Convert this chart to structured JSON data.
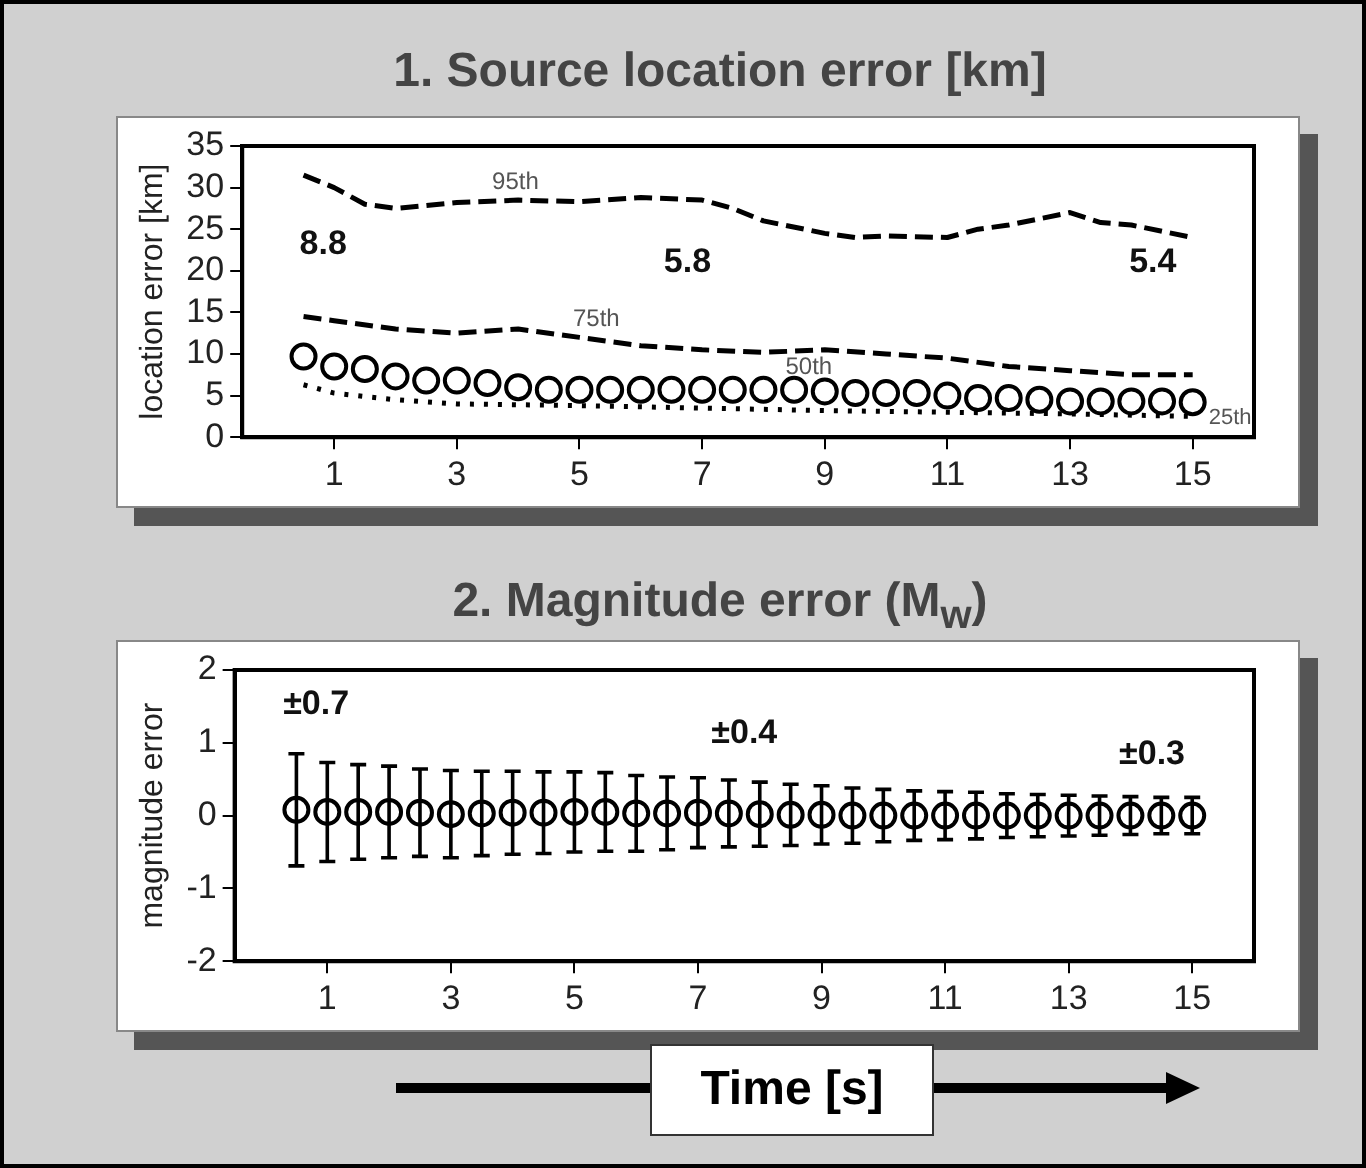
{
  "chart_data": [
    {
      "type": "line",
      "title": "1. Source location error [km]",
      "ylabel": "location error [km]",
      "xlim": [
        -0.5,
        16
      ],
      "xticks": [
        1,
        3,
        5,
        7,
        9,
        11,
        13,
        15
      ],
      "ylim": [
        0,
        35
      ],
      "yticks": [
        0,
        5,
        10,
        15,
        20,
        25,
        30,
        35
      ],
      "grid": false,
      "legend": false,
      "series": [
        {
          "type": "line",
          "name": "95th",
          "line_style": "dashed",
          "marker": "none",
          "color": "#000000",
          "x": [
            0.5,
            1,
            1.5,
            2,
            3,
            4,
            5,
            6,
            7,
            7.5,
            8,
            9,
            9.5,
            10,
            11,
            11.5,
            12,
            13,
            13.5,
            14,
            15
          ],
          "values": [
            31.5,
            30,
            28,
            27.5,
            28.2,
            28.5,
            28.3,
            28.8,
            28.5,
            27.5,
            26,
            24.5,
            24,
            24.2,
            24,
            25,
            25.5,
            27,
            25.8,
            25.5,
            24
          ]
        },
        {
          "type": "line",
          "name": "75th",
          "line_style": "dashed",
          "marker": "none",
          "color": "#000000",
          "x": [
            0.5,
            1,
            2,
            3,
            4,
            5,
            6,
            7,
            8,
            9,
            10,
            11,
            12,
            13,
            14,
            15
          ],
          "values": [
            14.5,
            14,
            13,
            12.5,
            13,
            12,
            11,
            10.5,
            10.2,
            10.5,
            10,
            9.5,
            8.5,
            8,
            7.5,
            7.5
          ]
        },
        {
          "type": "scatter",
          "name": "50th",
          "marker": "circle",
          "color": "#000000",
          "x": [
            0.5,
            1,
            1.5,
            2,
            2.5,
            3,
            3.5,
            4,
            4.5,
            5,
            5.5,
            6,
            6.5,
            7,
            7.5,
            8,
            8.5,
            9,
            9.5,
            10,
            10.5,
            11,
            11.5,
            12,
            12.5,
            13,
            13.5,
            14,
            14.5,
            15
          ],
          "values": [
            9.7,
            8.5,
            8.2,
            7.3,
            6.8,
            6.8,
            6.5,
            6,
            5.7,
            5.7,
            5.7,
            5.7,
            5.7,
            5.7,
            5.7,
            5.7,
            5.7,
            5.5,
            5.3,
            5.3,
            5.3,
            5,
            4.7,
            4.7,
            4.5,
            4.3,
            4.3,
            4.3,
            4.3,
            4.2
          ]
        },
        {
          "type": "line",
          "name": "25th",
          "line_style": "dotted",
          "marker": "none",
          "color": "#000000",
          "x": [
            0.5,
            1,
            2,
            3,
            5,
            7,
            9,
            11,
            13,
            15
          ],
          "values": [
            6.3,
            5.3,
            4.5,
            4,
            3.8,
            3.5,
            3.2,
            3,
            2.8,
            2.5
          ]
        }
      ],
      "annotations": [
        "8.8",
        "5.8",
        "5.4"
      ]
    },
    {
      "type": "scatter",
      "title": "2. Magnitude error (M$_{w}$)",
      "ylabel": "magnitude error",
      "xlabel": "Time [s]",
      "xlim": [
        -0.5,
        16
      ],
      "xticks": [
        1,
        3,
        5,
        7,
        9,
        11,
        13,
        15
      ],
      "ylim": [
        -2,
        2
      ],
      "yticks": [
        -2,
        -1,
        0,
        1,
        2
      ],
      "grid": false,
      "legend": false,
      "marker": "circle",
      "x": [
        0.5,
        1,
        1.5,
        2,
        2.5,
        3,
        3.5,
        4,
        4.5,
        5,
        5.5,
        6,
        6.5,
        7,
        7.5,
        8,
        8.5,
        9,
        9.5,
        10,
        10.5,
        11,
        11.5,
        12,
        12.5,
        13,
        13.5,
        14,
        14.5,
        15
      ],
      "values": [
        0.08,
        0.05,
        0.05,
        0.05,
        0.04,
        0.02,
        0.03,
        0.04,
        0.04,
        0.05,
        0.05,
        0.03,
        0.03,
        0.04,
        0.03,
        0.02,
        0.01,
        0.01,
        0,
        0,
        0,
        0,
        0,
        0,
        0,
        0,
        0,
        0,
        0,
        0
      ],
      "errors": [
        0.77,
        0.68,
        0.65,
        0.63,
        0.6,
        0.6,
        0.58,
        0.57,
        0.56,
        0.55,
        0.54,
        0.52,
        0.5,
        0.48,
        0.46,
        0.44,
        0.42,
        0.4,
        0.38,
        0.36,
        0.34,
        0.33,
        0.32,
        0.3,
        0.29,
        0.28,
        0.27,
        0.26,
        0.25,
        0.25
      ],
      "color": "#000000",
      "annotations": [
        "±0.7",
        "±0.4",
        "±0.3"
      ]
    }
  ]
}
